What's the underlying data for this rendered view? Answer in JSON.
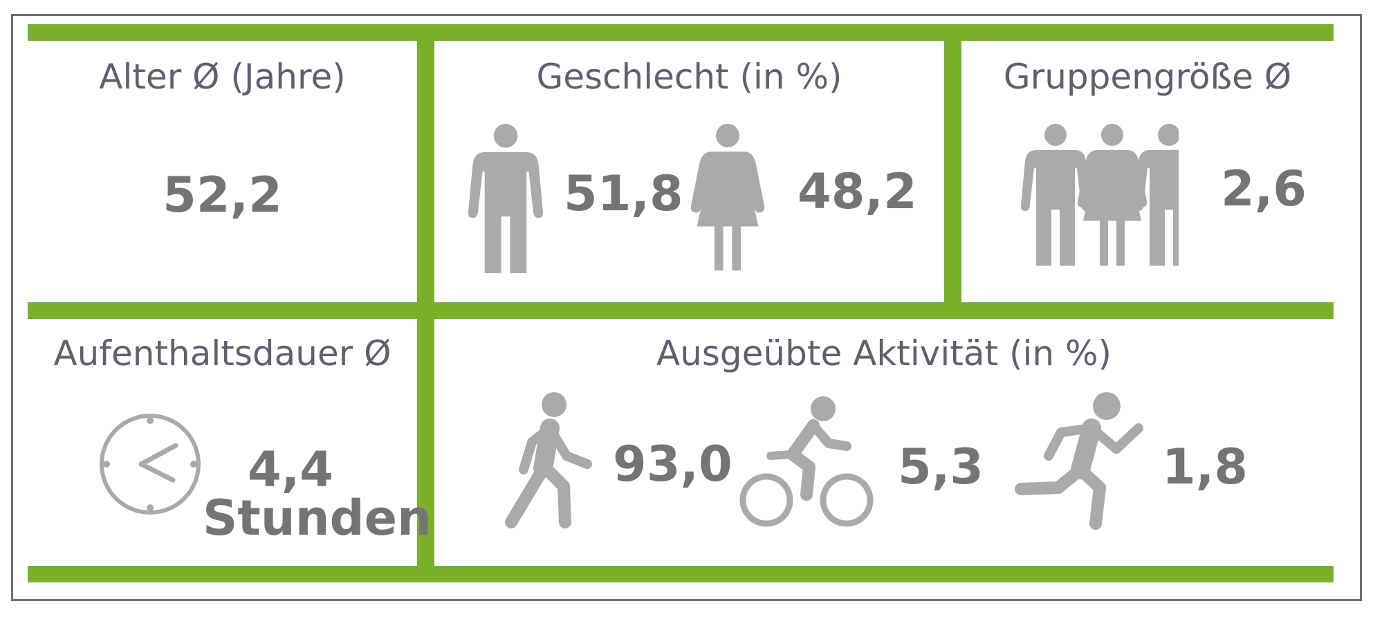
{
  "colors": {
    "accent_green": "#78b02a",
    "icon_gray": "#aaaaaa",
    "value_gray": "#747474",
    "title_gray": "#5d6070"
  },
  "age": {
    "title": "Alter Ø (Jahre)",
    "value": "52,2"
  },
  "gender": {
    "title": "Geschlecht (in %)",
    "male_value": "51,8",
    "female_value": "48,2",
    "male_icon": "man-icon",
    "female_icon": "woman-icon"
  },
  "group": {
    "title": "Gruppengröße Ø",
    "value": "2,6",
    "icon": "group-icon"
  },
  "stay": {
    "title": "Aufenthaltsdauer Ø",
    "value": "4,4",
    "unit": "Stunden",
    "icon": "clock-icon"
  },
  "activity": {
    "title": "Ausgeübte Aktivität (in %)",
    "items": [
      {
        "icon": "walking-icon",
        "value": "93,0"
      },
      {
        "icon": "cycling-icon",
        "value": "5,3"
      },
      {
        "icon": "running-icon",
        "value": "1,8"
      }
    ]
  }
}
